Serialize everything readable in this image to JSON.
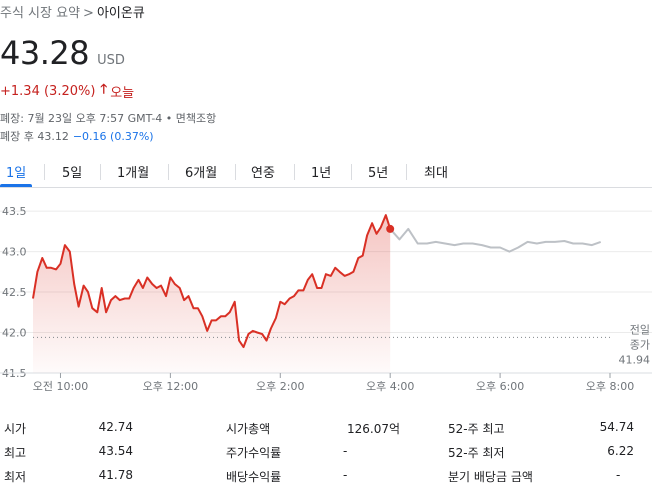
{
  "breadcrumb": {
    "parent": "주식 시장 요약",
    "separator": ">",
    "current": "아이온큐"
  },
  "quote": {
    "price": "43.28",
    "currency": "USD",
    "change": "+1.34 (3.20%)",
    "period": "오늘",
    "close_info": "폐장: 7월 23일 오후 7:57 GMT-4 • 면책조항",
    "after_hours_label": "폐장 후 43.12",
    "after_hours_change": "−0.16 (0.37%)"
  },
  "tabs": [
    "1일",
    "5일",
    "1개월",
    "6개월",
    "연중",
    "1년",
    "5년",
    "최대"
  ],
  "active_tab": "1일",
  "colors": {
    "up": "#d93025",
    "after_hours": "#bdc1c6",
    "accent": "#1a73e8"
  },
  "chart_data": {
    "type": "line",
    "xlabel": "",
    "ylabel": "",
    "y_ticks": [
      "43.5",
      "43.0",
      "42.5",
      "42.0",
      "41.5"
    ],
    "y_tick_values": [
      43.5,
      43.0,
      42.5,
      42.0,
      41.5
    ],
    "ylim": [
      41.5,
      43.6
    ],
    "x_ticks": [
      "오전 10:00",
      "오후 12:00",
      "오후 2:00",
      "오후 4:00",
      "오후 6:00",
      "오후 8:00"
    ],
    "x_tick_values": [
      10,
      12,
      14,
      16,
      18,
      20
    ],
    "xlim": [
      9.5,
      20.0
    ],
    "previous_close_label": [
      "전일",
      "종가",
      "41.94"
    ],
    "previous_close": 41.94,
    "series": [
      {
        "session": "regular",
        "x": [
          9.5,
          9.58,
          9.67,
          9.75,
          9.83,
          9.92,
          10.0,
          10.08,
          10.17,
          10.25,
          10.33,
          10.42,
          10.5,
          10.58,
          10.67,
          10.75,
          10.83,
          10.92,
          11.0,
          11.08,
          11.17,
          11.25,
          11.33,
          11.42,
          11.5,
          11.58,
          11.67,
          11.75,
          11.83,
          11.92,
          12.0,
          12.08,
          12.17,
          12.25,
          12.33,
          12.42,
          12.5,
          12.58,
          12.67,
          12.75,
          12.83,
          12.92,
          13.0,
          13.08,
          13.17,
          13.25,
          13.33,
          13.42,
          13.5,
          13.58,
          13.67,
          13.75,
          13.83,
          13.92,
          14.0,
          14.08,
          14.17,
          14.25,
          14.33,
          14.42,
          14.5,
          14.58,
          14.67,
          14.75,
          14.83,
          14.92,
          15.0,
          15.08,
          15.17,
          15.25,
          15.33,
          15.42,
          15.5,
          15.58,
          15.67,
          15.75,
          15.83,
          15.92,
          16.0
        ],
        "y": [
          42.42,
          42.75,
          42.92,
          42.8,
          42.8,
          42.78,
          42.85,
          43.08,
          43.0,
          42.6,
          42.32,
          42.58,
          42.5,
          42.3,
          42.25,
          42.55,
          42.25,
          42.4,
          42.45,
          42.4,
          42.42,
          42.42,
          42.55,
          42.65,
          42.55,
          42.68,
          42.6,
          42.55,
          42.58,
          42.45,
          42.68,
          42.6,
          42.55,
          42.4,
          42.45,
          42.3,
          42.3,
          42.2,
          42.02,
          42.15,
          42.15,
          42.2,
          42.2,
          42.25,
          42.38,
          41.9,
          41.82,
          41.98,
          42.02,
          42.0,
          41.98,
          41.9,
          42.05,
          42.18,
          42.38,
          42.35,
          42.42,
          42.45,
          42.52,
          42.52,
          42.65,
          42.72,
          42.55,
          42.55,
          42.72,
          42.7,
          42.8,
          42.75,
          42.7,
          42.72,
          42.75,
          42.92,
          42.95,
          43.2,
          43.35,
          43.22,
          43.3,
          43.45,
          43.28
        ]
      },
      {
        "session": "after_hours",
        "x": [
          16.0,
          16.17,
          16.33,
          16.5,
          16.67,
          16.83,
          17.0,
          17.17,
          17.33,
          17.5,
          17.67,
          17.83,
          18.0,
          18.17,
          18.33,
          18.5,
          18.67,
          18.83,
          19.0,
          19.17,
          19.33,
          19.5,
          19.67,
          19.83
        ],
        "y": [
          43.28,
          43.15,
          43.28,
          43.1,
          43.1,
          43.12,
          43.1,
          43.08,
          43.1,
          43.1,
          43.08,
          43.05,
          43.05,
          43.0,
          43.05,
          43.12,
          43.1,
          43.12,
          43.12,
          43.13,
          43.1,
          43.1,
          43.08,
          43.12
        ]
      }
    ]
  },
  "stats": [
    {
      "label": "시가",
      "value": "42.74"
    },
    {
      "label": "최고",
      "value": "43.54"
    },
    {
      "label": "최저",
      "value": "41.78"
    },
    {
      "label": "시가총액",
      "value": "126.07억"
    },
    {
      "label": "주가수익률",
      "value": "-"
    },
    {
      "label": "배당수익률",
      "value": "-"
    },
    {
      "label": "52-주 최고",
      "value": "54.74"
    },
    {
      "label": "52-주 최저",
      "value": "6.22"
    },
    {
      "label": "분기 배당금 금액",
      "value": "-"
    }
  ]
}
